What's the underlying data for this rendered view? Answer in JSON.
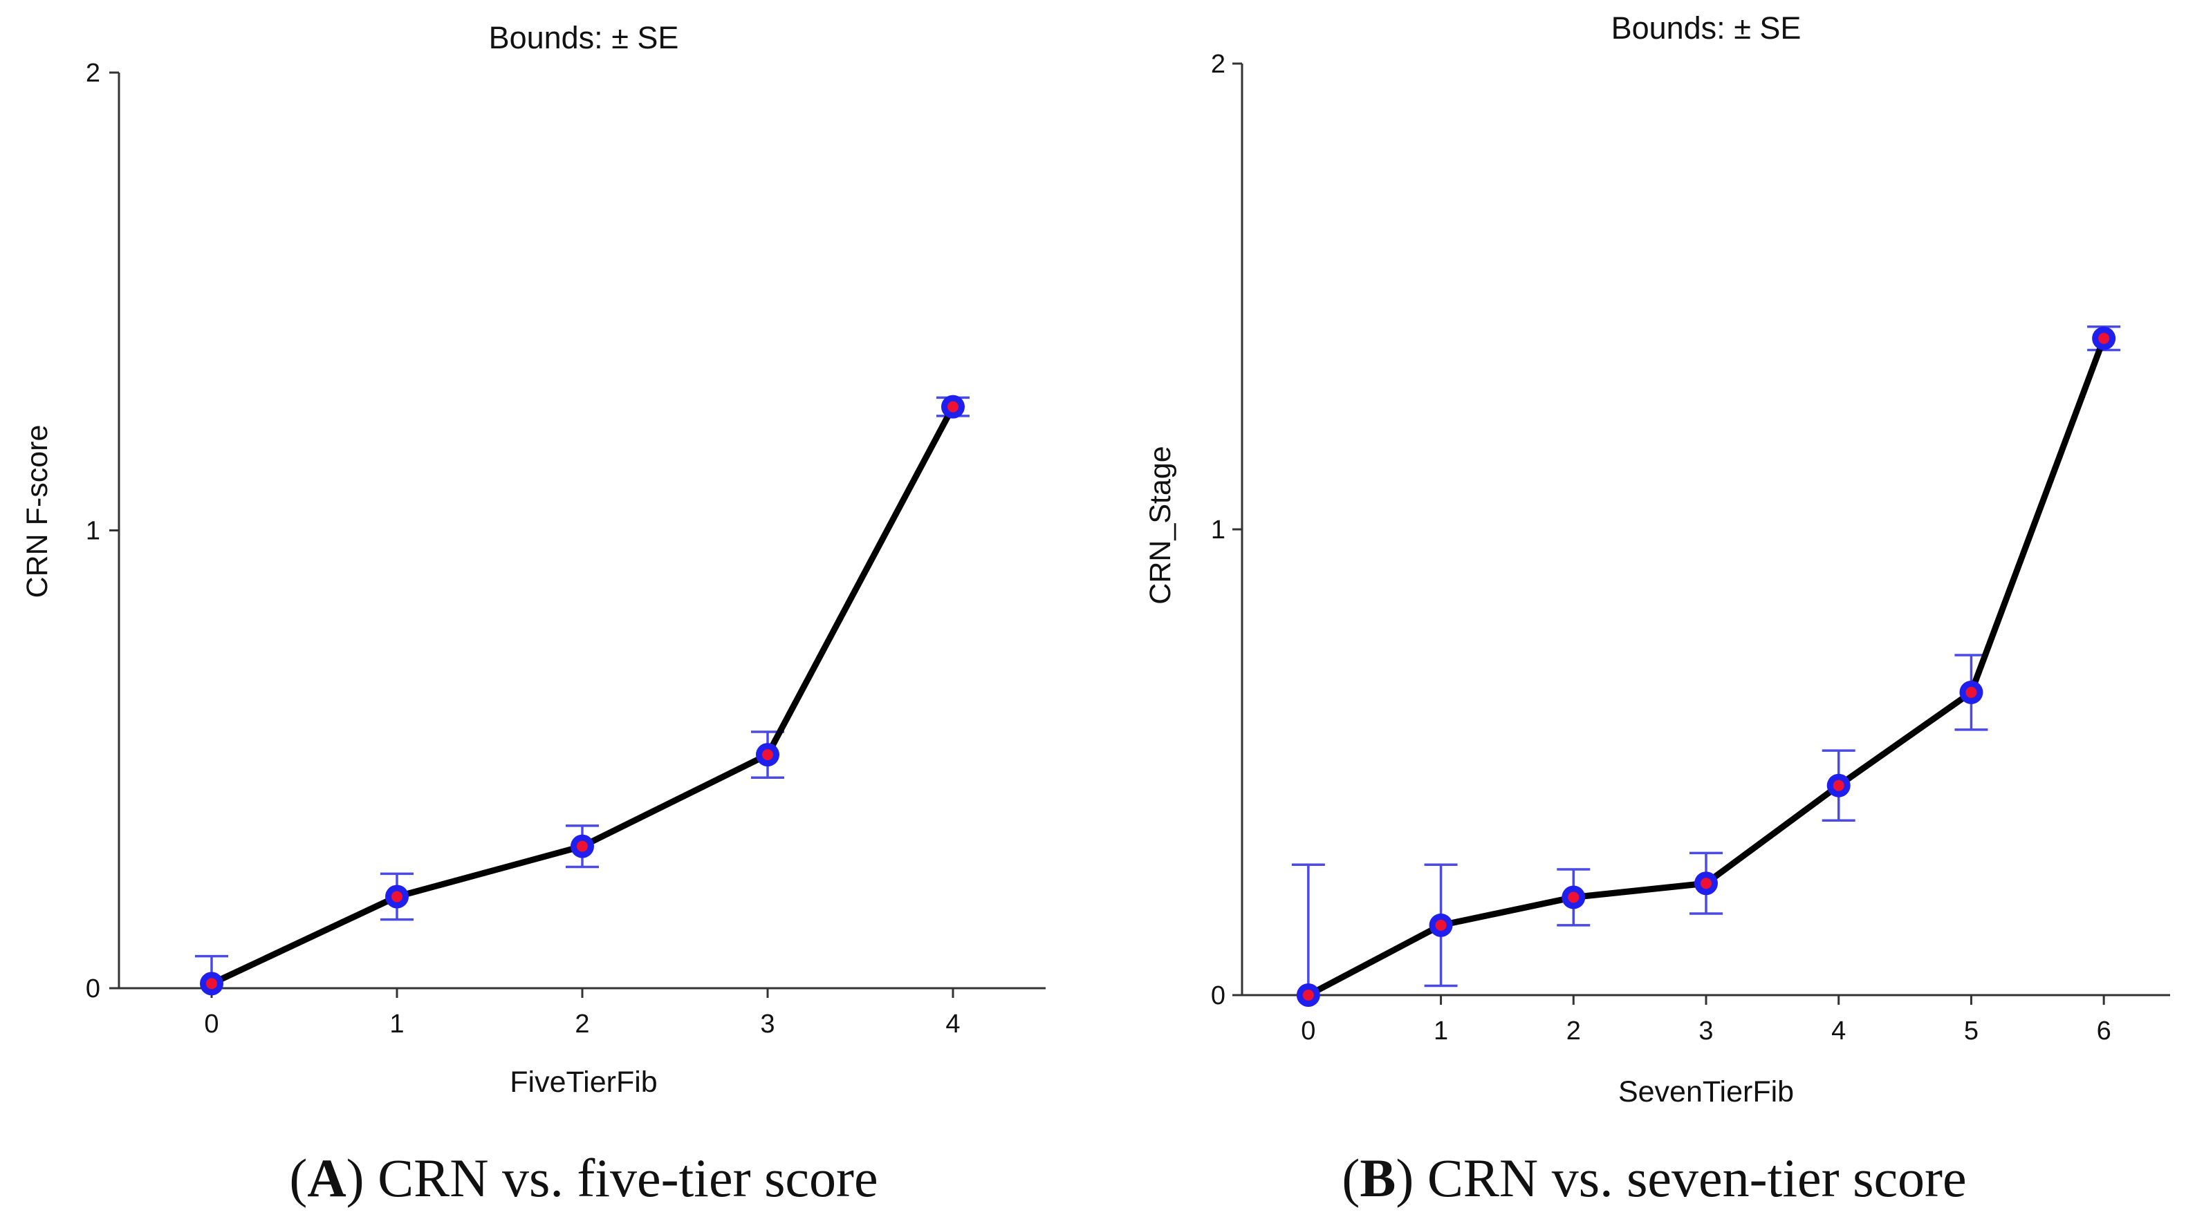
{
  "colors": {
    "line": "#000000",
    "marker_outer": "#2020ee",
    "marker_inner": "#ee1133",
    "error_bar": "#4a4ae6",
    "axis": "#333333"
  },
  "chart_data": [
    {
      "type": "line",
      "title": "Bounds:  ± SE",
      "xlabel": "FiveTierFib",
      "ylabel": "CRN F-score",
      "x": [
        0,
        1,
        2,
        3,
        4
      ],
      "values": [
        0.01,
        0.2,
        0.31,
        0.51,
        1.27
      ],
      "errors": [
        0.06,
        0.05,
        0.045,
        0.05,
        0.02
      ],
      "xlim": [
        -0.5,
        4.5
      ],
      "ylim": [
        0,
        2
      ],
      "xticks": [
        "0",
        "1",
        "2",
        "3",
        "4"
      ],
      "yticks": [
        "0",
        "1",
        "2"
      ],
      "caption_letter": "A",
      "caption_open": "(",
      "caption_close": ")",
      "caption_text": " CRN vs. five-tier score"
    },
    {
      "type": "line",
      "title": "Bounds:  ± SE",
      "xlabel": "SevenTierFib",
      "ylabel": "CRN_Stage",
      "x": [
        0,
        1,
        2,
        3,
        4,
        5,
        6
      ],
      "values": [
        0.0,
        0.15,
        0.21,
        0.24,
        0.45,
        0.65,
        1.41
      ],
      "errors": [
        0.28,
        0.13,
        0.06,
        0.065,
        0.075,
        0.08,
        0.025
      ],
      "xlim": [
        -0.5,
        6.5
      ],
      "ylim": [
        0,
        2
      ],
      "xticks": [
        "0",
        "1",
        "2",
        "3",
        "4",
        "5",
        "6"
      ],
      "yticks": [
        "0",
        "1",
        "2"
      ],
      "caption_letter": "B",
      "caption_open": "(",
      "caption_close": ")",
      "caption_text": " CRN vs. seven-tier score"
    }
  ]
}
